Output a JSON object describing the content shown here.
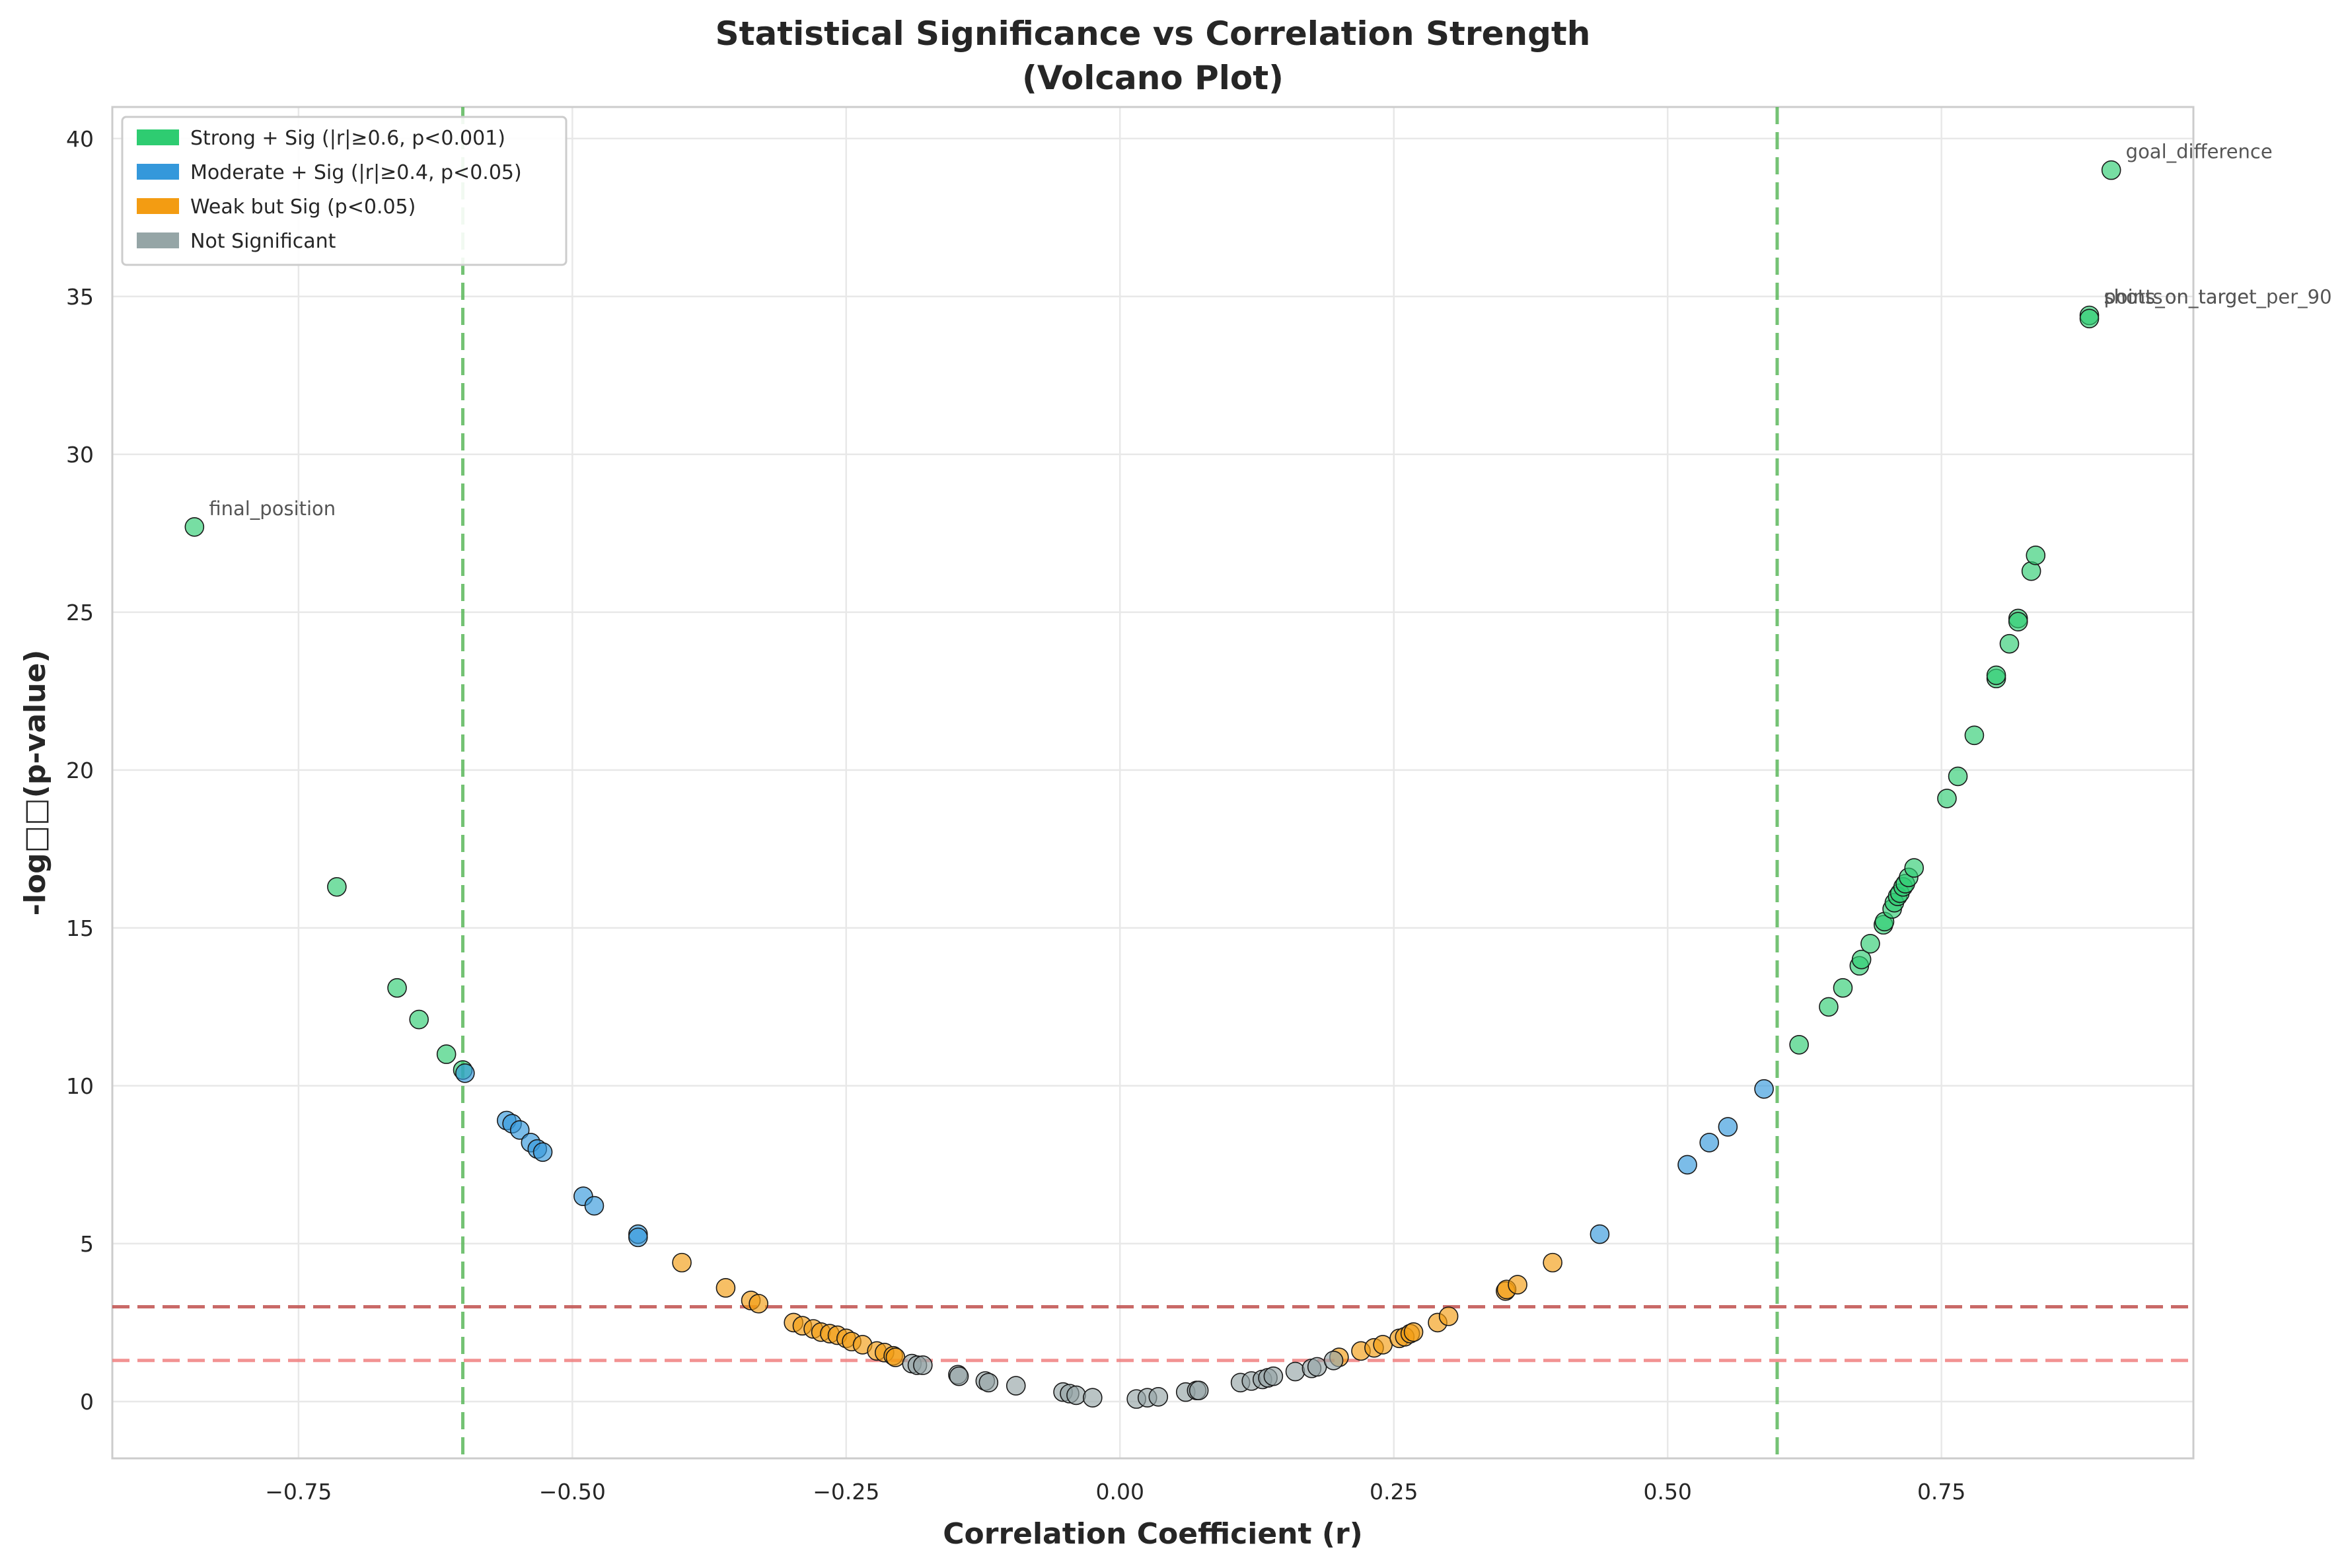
{
  "chart_data": {
    "type": "scatter",
    "title": "Statistical Significance vs Correlation Strength",
    "subtitle": "(Volcano Plot)",
    "xlabel": "Correlation Coefficient (r)",
    "ylabel": "-log□□(p-value)",
    "xlim": [
      -0.92,
      0.98
    ],
    "ylim": [
      -1.8,
      41.0
    ],
    "xticks": [
      "−0.75",
      "−0.50",
      "−0.25",
      "0.00",
      "0.25",
      "0.50",
      "0.75"
    ],
    "xtick_values": [
      -0.75,
      -0.5,
      -0.25,
      0.0,
      0.25,
      0.5,
      0.75
    ],
    "yticks": [
      "0",
      "5",
      "10",
      "15",
      "20",
      "25",
      "30",
      "35",
      "40"
    ],
    "ytick_values": [
      0,
      5,
      10,
      15,
      20,
      25,
      30,
      35,
      40
    ],
    "grid": true,
    "legend_position": "top-left",
    "thresholds": {
      "vertical_r": [
        -0.6,
        0.6
      ],
      "horizontal_neglogp": [
        3.0,
        1.3
      ],
      "vertical_color": "#5cb85c",
      "horizontal_colors": [
        "#c0504d",
        "#f08080"
      ]
    },
    "colors": {
      "strong": "#2ecc71",
      "moderate": "#3498db",
      "weak": "#f39c12",
      "ns": "#95a5a6"
    },
    "legend": [
      {
        "label": "Strong + Sig (|r|≥0.6, p<0.001)",
        "key": "strong"
      },
      {
        "label": "Moderate + Sig (|r|≥0.4, p<0.05)",
        "key": "moderate"
      },
      {
        "label": "Weak but Sig (p<0.05)",
        "key": "weak"
      },
      {
        "label": "Not Significant",
        "key": "ns"
      }
    ],
    "annotations": [
      {
        "text": "goal_difference",
        "x": 0.905,
        "y": 39.0
      },
      {
        "text": "shots_on_target_per_90",
        "x": 0.885,
        "y": 34.4
      },
      {
        "text": "points",
        "x": 0.885,
        "y": 34.4
      },
      {
        "text": "shots_on_target",
        "x": 0.885,
        "y": 34.4
      },
      {
        "text": "final_position",
        "x": -0.845,
        "y": 27.7
      }
    ],
    "series": [
      {
        "key": "strong",
        "points": [
          [
            -0.845,
            27.7
          ],
          [
            -0.715,
            16.3
          ],
          [
            -0.66,
            13.1
          ],
          [
            -0.64,
            12.1
          ],
          [
            -0.615,
            11.0
          ],
          [
            -0.6,
            10.5
          ],
          [
            0.62,
            11.3
          ],
          [
            0.647,
            12.5
          ],
          [
            0.66,
            13.1
          ],
          [
            0.675,
            13.8
          ],
          [
            0.677,
            14.0
          ],
          [
            0.685,
            14.5
          ],
          [
            0.697,
            15.1
          ],
          [
            0.698,
            15.2
          ],
          [
            0.705,
            15.6
          ],
          [
            0.707,
            15.8
          ],
          [
            0.71,
            16.0
          ],
          [
            0.712,
            16.1
          ],
          [
            0.715,
            16.3
          ],
          [
            0.717,
            16.4
          ],
          [
            0.72,
            16.6
          ],
          [
            0.725,
            16.9
          ],
          [
            0.755,
            19.1
          ],
          [
            0.765,
            19.8
          ],
          [
            0.78,
            21.1
          ],
          [
            0.8,
            22.9
          ],
          [
            0.8,
            23.0
          ],
          [
            0.812,
            24.0
          ],
          [
            0.82,
            24.8
          ],
          [
            0.82,
            24.7
          ],
          [
            0.832,
            26.3
          ],
          [
            0.836,
            26.8
          ],
          [
            0.885,
            34.4
          ],
          [
            0.885,
            34.3
          ],
          [
            0.905,
            39.0
          ]
        ]
      },
      {
        "key": "moderate",
        "points": [
          [
            -0.598,
            10.4
          ],
          [
            -0.56,
            8.9
          ],
          [
            -0.555,
            8.8
          ],
          [
            -0.548,
            8.6
          ],
          [
            -0.538,
            8.2
          ],
          [
            -0.532,
            8.0
          ],
          [
            -0.527,
            7.9
          ],
          [
            -0.49,
            6.5
          ],
          [
            -0.48,
            6.2
          ],
          [
            -0.44,
            5.3
          ],
          [
            -0.44,
            5.2
          ],
          [
            0.438,
            5.3
          ],
          [
            0.518,
            7.5
          ],
          [
            0.538,
            8.2
          ],
          [
            0.555,
            8.7
          ],
          [
            0.588,
            9.9
          ]
        ]
      },
      {
        "key": "weak",
        "points": [
          [
            -0.4,
            4.4
          ],
          [
            -0.36,
            3.6
          ],
          [
            -0.337,
            3.2
          ],
          [
            -0.33,
            3.1
          ],
          [
            -0.298,
            2.5
          ],
          [
            -0.29,
            2.4
          ],
          [
            -0.28,
            2.3
          ],
          [
            -0.273,
            2.2
          ],
          [
            -0.265,
            2.15
          ],
          [
            -0.258,
            2.1
          ],
          [
            -0.25,
            2.0
          ],
          [
            -0.245,
            1.9
          ],
          [
            -0.235,
            1.8
          ],
          [
            -0.222,
            1.6
          ],
          [
            -0.215,
            1.55
          ],
          [
            -0.207,
            1.45
          ],
          [
            -0.205,
            1.4
          ],
          [
            0.2,
            1.4
          ],
          [
            0.22,
            1.6
          ],
          [
            0.232,
            1.7
          ],
          [
            0.24,
            1.8
          ],
          [
            0.255,
            2.0
          ],
          [
            0.26,
            2.05
          ],
          [
            0.265,
            2.15
          ],
          [
            0.268,
            2.2
          ],
          [
            0.29,
            2.5
          ],
          [
            0.3,
            2.7
          ],
          [
            0.352,
            3.5
          ],
          [
            0.353,
            3.55
          ],
          [
            0.363,
            3.7
          ],
          [
            0.395,
            4.4
          ]
        ]
      },
      {
        "key": "ns",
        "points": [
          [
            -0.19,
            1.2
          ],
          [
            -0.185,
            1.15
          ],
          [
            -0.18,
            1.15
          ],
          [
            -0.148,
            0.85
          ],
          [
            -0.147,
            0.8
          ],
          [
            -0.123,
            0.65
          ],
          [
            -0.12,
            0.6
          ],
          [
            -0.095,
            0.5
          ],
          [
            -0.052,
            0.3
          ],
          [
            -0.046,
            0.25
          ],
          [
            -0.04,
            0.2
          ],
          [
            -0.025,
            0.12
          ],
          [
            0.015,
            0.08
          ],
          [
            0.025,
            0.12
          ],
          [
            0.035,
            0.15
          ],
          [
            0.06,
            0.3
          ],
          [
            0.07,
            0.35
          ],
          [
            0.072,
            0.35
          ],
          [
            0.11,
            0.6
          ],
          [
            0.12,
            0.65
          ],
          [
            0.13,
            0.7
          ],
          [
            0.135,
            0.75
          ],
          [
            0.14,
            0.8
          ],
          [
            0.16,
            0.95
          ],
          [
            0.175,
            1.05
          ],
          [
            0.18,
            1.1
          ],
          [
            0.195,
            1.3
          ]
        ]
      }
    ]
  }
}
